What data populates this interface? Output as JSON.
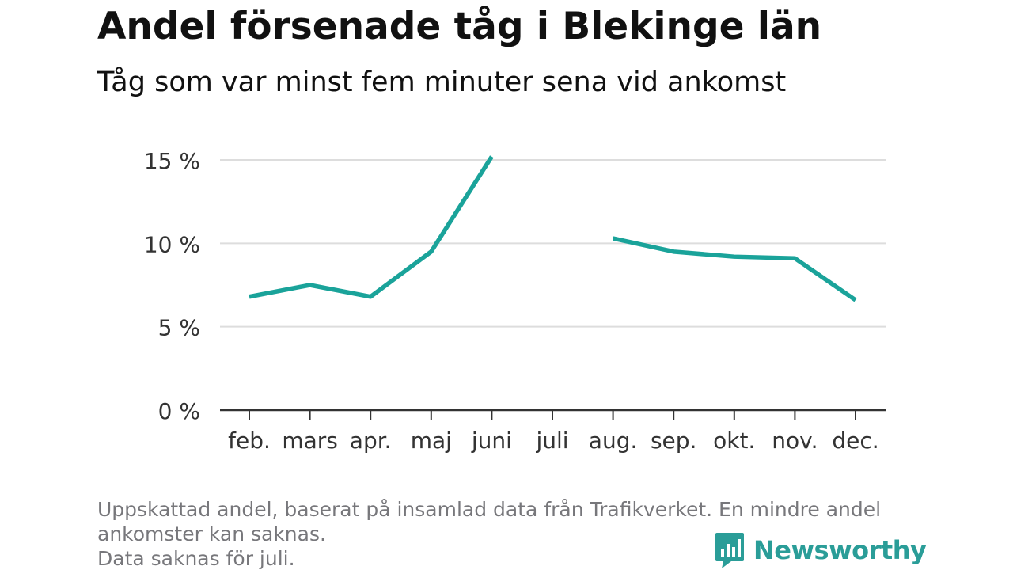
{
  "header": {
    "title": "Andel försenade tåg i Blekinge län",
    "subtitle": "Tåg som var minst fem minuter sena vid ankomst"
  },
  "footnote": {
    "line1": "Uppskattad andel, baserat på insamlad data från Trafikverket. En mindre andel",
    "line2": "ankomster kan saknas.",
    "line3": "Data saknas för juli."
  },
  "brand": {
    "name": "Newsworthy",
    "icon": "newsworthy-logo-icon",
    "color": "#2a9d98"
  },
  "colors": {
    "line": "#1aa39a",
    "grid": "#dddddd",
    "axis": "#333333"
  },
  "chart_data": {
    "type": "line",
    "title": "Andel försenade tåg i Blekinge län",
    "subtitle": "Tåg som var minst fem minuter sena vid ankomst",
    "categories": [
      "feb.",
      "mars",
      "apr.",
      "maj",
      "juni",
      "juli",
      "aug.",
      "sep.",
      "okt.",
      "nov.",
      "dec."
    ],
    "series": [
      {
        "values": [
          6.8,
          7.5,
          6.8,
          9.5,
          15.2,
          null,
          10.3,
          9.5,
          9.2,
          9.1,
          6.6
        ]
      }
    ],
    "yticks": [
      "0 %",
      "5 %",
      "10 %",
      "15 %"
    ],
    "ytick_values": [
      0,
      5,
      10,
      15
    ],
    "ylim": [
      0,
      15
    ],
    "grid": true,
    "unit": "%"
  }
}
